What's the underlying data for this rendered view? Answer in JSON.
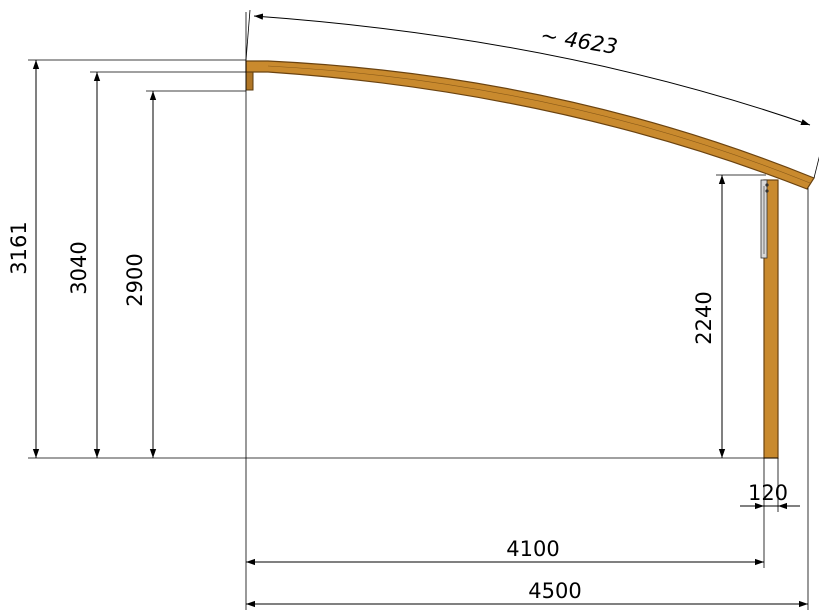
{
  "dimensions": {
    "arc_length": "~ 4623",
    "height_total": "3161",
    "height_beam_top": "3040",
    "height_beam_bottom": "2900",
    "height_post": "2240",
    "post_width": "120",
    "span_post": "4100",
    "span_total": "4500"
  },
  "colors": {
    "wood": "#c98a2e",
    "wood_outline": "#6b4310",
    "line": "#000000"
  }
}
